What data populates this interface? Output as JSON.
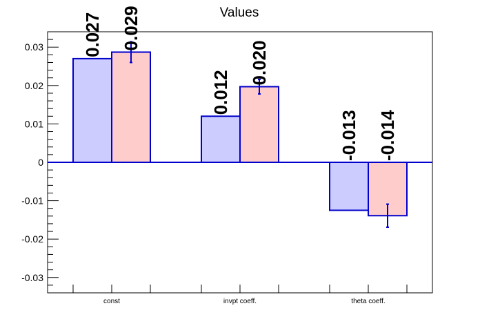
{
  "chart_data": {
    "type": "bar",
    "title": "Values",
    "xlabel": "",
    "ylabel": "",
    "categories": [
      "const",
      "invpt coeff.",
      "theta coeff."
    ],
    "series": [
      {
        "values": [
          0.027,
          0.012,
          -0.0125
        ],
        "data_labels": [
          "0.027",
          "0.012",
          "-0.013"
        ],
        "fill": "#ccccff",
        "stroke": "#0000cc"
      },
      {
        "values": [
          0.0287,
          0.0197,
          -0.0139
        ],
        "data_labels": [
          "0.029",
          "0.020",
          "-0.014"
        ],
        "errors": [
          0.0027,
          0.0019,
          0.003
        ],
        "fill": "#ffcccc",
        "stroke": "#0000cc"
      }
    ],
    "ylim": [
      -0.034,
      0.034
    ],
    "yticks": [
      -0.03,
      -0.02,
      -0.01,
      0,
      0.01,
      0.02,
      0.03
    ],
    "ytick_labels": [
      "-0.03",
      "-0.02",
      "-0.01",
      "0",
      "0.01",
      "0.02",
      "0.03"
    ],
    "grid": false,
    "zero_line": true,
    "legend": "none"
  }
}
